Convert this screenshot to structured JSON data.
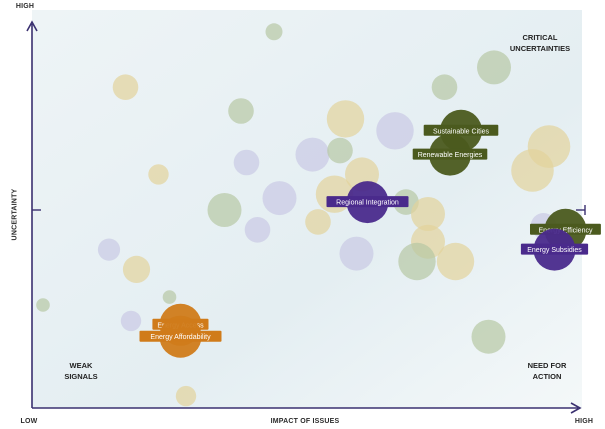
{
  "chart_data": {
    "type": "scatter",
    "xlabel": "IMPACT OF ISSUES",
    "ylabel": "UNCERTAINTY",
    "x_low_label": "LOW",
    "x_high_label": "HIGH",
    "y_high_label": "HIGH",
    "xlim": [
      0,
      100
    ],
    "ylim": [
      0,
      100
    ],
    "quadrants": {
      "top_right": [
        "CRITICAL",
        "UNCERTAINTIES"
      ],
      "bottom_left": [
        "WEAK",
        "SIGNALS"
      ],
      "bottom_right": [
        "NEED FOR",
        "ACTION"
      ]
    },
    "colors": {
      "axis": "#3a3070",
      "purple": "#4a2a8c",
      "green": "#4b5a1e",
      "orange": "#d07b1a",
      "tan": "#e3d39b",
      "sage": "#b7c7a4",
      "lavender": "#c9c9e4"
    },
    "labeled_points": [
      {
        "label": "Sustainable Cities",
        "x": 78,
        "y": 70,
        "size": 3,
        "color": "green"
      },
      {
        "label": "Renewable Energies",
        "x": 76,
        "y": 64,
        "size": 3,
        "color": "green"
      },
      {
        "label": "Regional Integration",
        "x": 61,
        "y": 52,
        "size": 3,
        "color": "purple"
      },
      {
        "label": "Energy Efficiency",
        "x": 97,
        "y": 45,
        "size": 3,
        "color": "green"
      },
      {
        "label": "Energy Subsidies",
        "x": 95,
        "y": 40,
        "size": 3,
        "color": "purple"
      },
      {
        "label": "Energy Access",
        "x": 27,
        "y": 21,
        "size": 3,
        "color": "orange"
      },
      {
        "label": "Energy Affordability",
        "x": 27,
        "y": 18,
        "size": 3,
        "color": "orange"
      }
    ],
    "background_points": [
      {
        "x": 44,
        "y": 95,
        "size": 1,
        "color": "sage"
      },
      {
        "x": 84,
        "y": 86,
        "size": 2,
        "color": "sage"
      },
      {
        "x": 75,
        "y": 81,
        "size": 1.5,
        "color": "sage"
      },
      {
        "x": 17,
        "y": 81,
        "size": 1.5,
        "color": "tan"
      },
      {
        "x": 38,
        "y": 75,
        "size": 1.5,
        "color": "sage"
      },
      {
        "x": 57,
        "y": 73,
        "size": 2.2,
        "color": "tan"
      },
      {
        "x": 66,
        "y": 70,
        "size": 2.2,
        "color": "lavender"
      },
      {
        "x": 94,
        "y": 66,
        "size": 2.5,
        "color": "tan"
      },
      {
        "x": 91,
        "y": 60,
        "size": 2.5,
        "color": "tan"
      },
      {
        "x": 51,
        "y": 64,
        "size": 2,
        "color": "lavender"
      },
      {
        "x": 56,
        "y": 65,
        "size": 1.5,
        "color": "sage"
      },
      {
        "x": 39,
        "y": 62,
        "size": 1.5,
        "color": "lavender"
      },
      {
        "x": 23,
        "y": 59,
        "size": 1.2,
        "color": "tan"
      },
      {
        "x": 60,
        "y": 59,
        "size": 2,
        "color": "tan"
      },
      {
        "x": 45,
        "y": 53,
        "size": 2,
        "color": "lavender"
      },
      {
        "x": 55,
        "y": 54,
        "size": 2.2,
        "color": "tan"
      },
      {
        "x": 35,
        "y": 50,
        "size": 2,
        "color": "sage"
      },
      {
        "x": 68,
        "y": 52,
        "size": 1.5,
        "color": "sage"
      },
      {
        "x": 72,
        "y": 49,
        "size": 2,
        "color": "tan"
      },
      {
        "x": 52,
        "y": 47,
        "size": 1.5,
        "color": "tan"
      },
      {
        "x": 41,
        "y": 45,
        "size": 1.5,
        "color": "lavender"
      },
      {
        "x": 14,
        "y": 40,
        "size": 1.3,
        "color": "lavender"
      },
      {
        "x": 59,
        "y": 39,
        "size": 2,
        "color": "lavender"
      },
      {
        "x": 72,
        "y": 42,
        "size": 2,
        "color": "tan"
      },
      {
        "x": 70,
        "y": 37,
        "size": 2.2,
        "color": "sage"
      },
      {
        "x": 77,
        "y": 37,
        "size": 2.2,
        "color": "tan"
      },
      {
        "x": 93,
        "y": 46,
        "size": 1.5,
        "color": "lavender"
      },
      {
        "x": 19,
        "y": 35,
        "size": 1.6,
        "color": "tan"
      },
      {
        "x": 2,
        "y": 26,
        "size": 0.8,
        "color": "sage"
      },
      {
        "x": 25,
        "y": 28,
        "size": 0.8,
        "color": "sage"
      },
      {
        "x": 18,
        "y": 22,
        "size": 1.2,
        "color": "lavender"
      },
      {
        "x": 83,
        "y": 18,
        "size": 2,
        "color": "sage"
      },
      {
        "x": 28,
        "y": 3,
        "size": 1.2,
        "color": "tan"
      }
    ]
  }
}
